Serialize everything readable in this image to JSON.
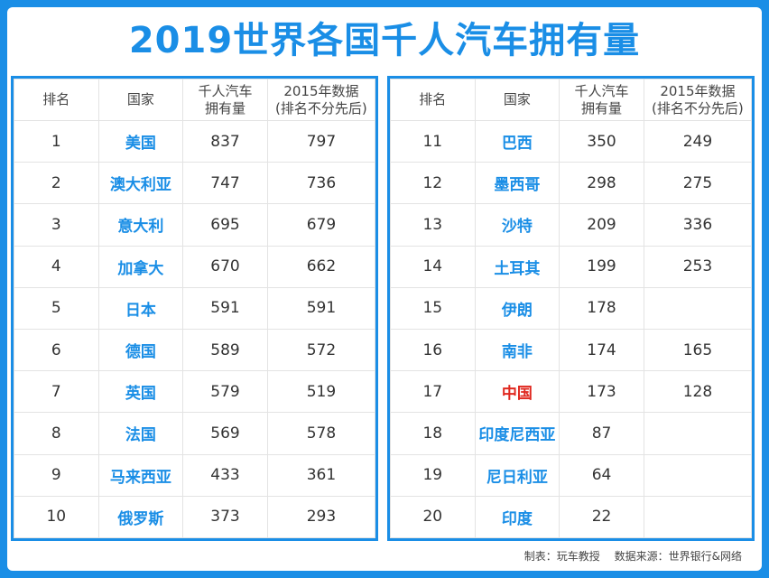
{
  "title": "2019世界各国千人汽车拥有量",
  "headers": {
    "rank": "排名",
    "country": "国家",
    "cars_line1": "千人汽车",
    "cars_line2": "拥有量",
    "y2015_line1": "2015年数据",
    "y2015_line2": "(排名不分先后)"
  },
  "left_rows": [
    {
      "rank": "1",
      "country": "美国",
      "cars": "837",
      "y2015": "797"
    },
    {
      "rank": "2",
      "country": "澳大利亚",
      "cars": "747",
      "y2015": "736"
    },
    {
      "rank": "3",
      "country": "意大利",
      "cars": "695",
      "y2015": "679"
    },
    {
      "rank": "4",
      "country": "加拿大",
      "cars": "670",
      "y2015": "662"
    },
    {
      "rank": "5",
      "country": "日本",
      "cars": "591",
      "y2015": "591"
    },
    {
      "rank": "6",
      "country": "德国",
      "cars": "589",
      "y2015": "572"
    },
    {
      "rank": "7",
      "country": "英国",
      "cars": "579",
      "y2015": "519"
    },
    {
      "rank": "8",
      "country": "法国",
      "cars": "569",
      "y2015": "578"
    },
    {
      "rank": "9",
      "country": "马来西亚",
      "cars": "433",
      "y2015": "361"
    },
    {
      "rank": "10",
      "country": "俄罗斯",
      "cars": "373",
      "y2015": "293"
    }
  ],
  "right_rows": [
    {
      "rank": "11",
      "country": "巴西",
      "cars": "350",
      "y2015": "249"
    },
    {
      "rank": "12",
      "country": "墨西哥",
      "cars": "298",
      "y2015": "275"
    },
    {
      "rank": "13",
      "country": "沙特",
      "cars": "209",
      "y2015": "336"
    },
    {
      "rank": "14",
      "country": "土耳其",
      "cars": "199",
      "y2015": "253"
    },
    {
      "rank": "15",
      "country": "伊朗",
      "cars": "178",
      "y2015": ""
    },
    {
      "rank": "16",
      "country": "南非",
      "cars": "174",
      "y2015": "165"
    },
    {
      "rank": "17",
      "country": "中国",
      "cars": "173",
      "y2015": "128"
    },
    {
      "rank": "18",
      "country": "印度尼西亚",
      "cars": "87",
      "y2015": ""
    },
    {
      "rank": "19",
      "country": "尼日利亚",
      "cars": "64",
      "y2015": ""
    },
    {
      "rank": "20",
      "country": "印度",
      "cars": "22",
      "y2015": ""
    }
  ],
  "highlight_country": "中国",
  "colors": {
    "accent": "#1a8ee6",
    "highlight": "#e0281f"
  },
  "footer": {
    "maker": "制表：玩车教授",
    "source": "数据来源：世界银行&网络"
  }
}
